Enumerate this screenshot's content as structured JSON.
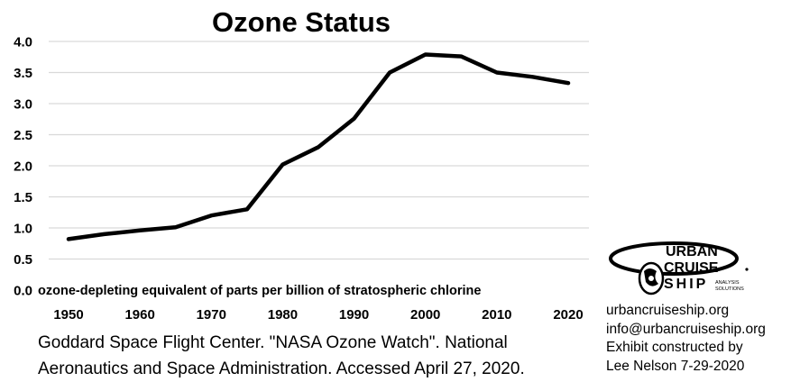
{
  "chart_data": {
    "type": "line",
    "title": "Ozone Status",
    "xlabel": "",
    "ylabel": "",
    "annotation": "ozone-depleting equivalent of parts per billion of stratospheric chlorine",
    "x_ticks": [
      "1950",
      "1960",
      "1970",
      "1980",
      "1990",
      "2000",
      "2010",
      "2020"
    ],
    "y_ticks": [
      "0.0",
      "0.5",
      "1.0",
      "1.5",
      "2.0",
      "2.5",
      "3.0",
      "3.5",
      "4.0"
    ],
    "xlim": [
      1950,
      2020
    ],
    "ylim": [
      0,
      4
    ],
    "grid": true,
    "line_color": "#000000",
    "series": [
      {
        "x": [
          1950,
          1955,
          1960,
          1965,
          1970,
          1975,
          1980,
          1985,
          1990,
          1995,
          2000,
          2005,
          2010,
          2015,
          2020
        ],
        "y": [
          0.82,
          0.9,
          0.96,
          1.01,
          1.2,
          1.3,
          2.02,
          2.3,
          2.76,
          3.5,
          3.79,
          3.76,
          3.5,
          3.43,
          3.33
        ]
      }
    ]
  },
  "source": {
    "line1": "Goddard Space Flight Center. \"NASA Ozone Watch\". National",
    "line2": "Aeronautics and Space Administration. Accessed April 27, 2020."
  },
  "logo": {
    "word1": "URBAN",
    "word2": "CRUISE",
    "word3": "SHIP",
    "tagline1": "ANALYSIS",
    "tagline2": "SOLUTIONS"
  },
  "contact": {
    "website": "urbancruiseship.org",
    "email": "info@urbancruiseship.org",
    "credit_line1": "Exhibit constructed by",
    "credit_line2": "Lee Nelson 7-29-2020"
  }
}
